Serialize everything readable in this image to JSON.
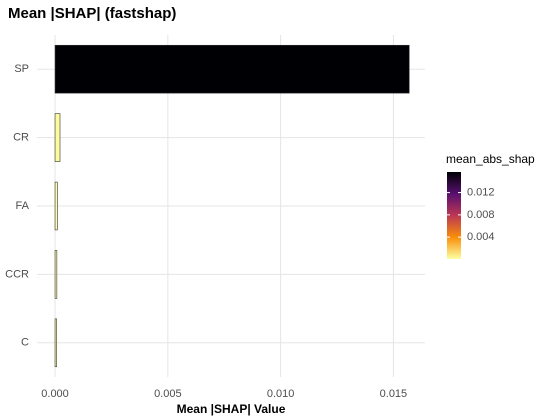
{
  "chart_data": {
    "type": "hbar",
    "title": "Mean |SHAP| (fastshap)",
    "x_label": "Mean |SHAP| Value",
    "categories": [
      "SP",
      "CR",
      "FA",
      "CCR",
      "C"
    ],
    "values": [
      0.0157,
      0.00022,
      0.0001,
      8e-05,
      7e-05
    ],
    "xlim": [
      -0.0008,
      0.0164
    ],
    "xticks": [
      {
        "value": 0,
        "label": "0.000"
      },
      0.005,
      {
        "value": 0.01,
        "label": "0.010"
      },
      0.015
    ],
    "grid": true,
    "legend_title": "mean_abs_shap",
    "colorbar_ticks": [
      0.004,
      0.008,
      0.012
    ],
    "color_stops": [
      "#fcffa4",
      "#f98e09",
      "#bc3754",
      "#57106e",
      "#000004"
    ],
    "legend_position": "right"
  }
}
